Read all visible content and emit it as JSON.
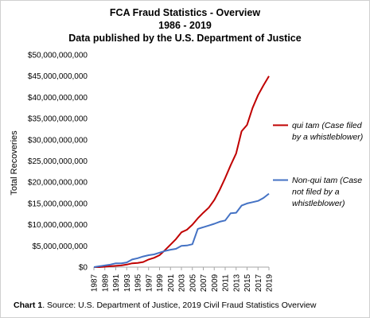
{
  "chart_data": {
    "type": "line",
    "title_lines": [
      "FCA Fraud Statistics - Overview",
      "1986 - 2019",
      "Data published by the U.S. Department of Justice"
    ],
    "ylabel": "Total Recoveries",
    "xlabel": "",
    "ylim": [
      0,
      50000000000
    ],
    "yticks": [
      0,
      5000000000,
      10000000000,
      15000000000,
      20000000000,
      25000000000,
      30000000000,
      35000000000,
      40000000000,
      45000000000,
      50000000000
    ],
    "ytick_labels": [
      "$0",
      "$5,000,000,000",
      "$10,000,000,000",
      "$15,000,000,000",
      "$20,000,000,000",
      "$25,000,000,000",
      "$30,000,000,000",
      "$35,000,000,000",
      "$40,000,000,000",
      "$45,000,000,000",
      "$50,000,000,000"
    ],
    "xlim": [
      1987,
      2019
    ],
    "xtick_labels": [
      "1987",
      "1989",
      "1991",
      "1993",
      "1995",
      "1997",
      "1999",
      "2001",
      "2003",
      "2005",
      "2007",
      "2009",
      "2011",
      "2013",
      "2015",
      "2017",
      "2019"
    ],
    "grid": false,
    "legend_position": "right",
    "x": [
      1987,
      1988,
      1989,
      1990,
      1991,
      1992,
      1993,
      1994,
      1995,
      1996,
      1997,
      1998,
      1999,
      2000,
      2001,
      2002,
      2003,
      2004,
      2005,
      2006,
      2007,
      2008,
      2009,
      2010,
      2011,
      2012,
      2013,
      2014,
      2015,
      2016,
      2017,
      2018,
      2019
    ],
    "series": [
      {
        "name_lines": [
          "qui tam (Case filed",
          "by a whistleblower)"
        ],
        "color": "#c00000",
        "values": [
          0,
          0,
          0.1,
          0.2,
          0.3,
          0.4,
          0.6,
          0.9,
          1.0,
          1.2,
          1.8,
          2.2,
          2.8,
          4.0,
          5.3,
          6.6,
          8.2,
          8.8,
          10.0,
          11.5,
          12.8,
          14.0,
          15.8,
          18.2,
          21.0,
          24.0,
          26.8,
          32.0,
          33.5,
          37.5,
          40.5,
          42.8,
          45.0
        ]
      },
      {
        "name_lines": [
          "Non-qui tam (Case",
          "not filed by a",
          "whistleblower)"
        ],
        "color": "#4472c4",
        "values": [
          0,
          0.2,
          0.4,
          0.6,
          0.9,
          0.9,
          1.1,
          1.8,
          2.1,
          2.5,
          2.8,
          3.0,
          3.4,
          3.8,
          4.1,
          4.3,
          5.0,
          5.1,
          5.4,
          9.0,
          9.4,
          9.8,
          10.2,
          10.7,
          11.0,
          12.7,
          12.8,
          14.5,
          15.0,
          15.3,
          15.6,
          16.3,
          17.3
        ]
      }
    ],
    "values_unit_note": "values in billions of dollars"
  },
  "caption": {
    "label": "Chart 1",
    "text": ". Source: U.S. Department of Justice, 2019 Civil Fraud Statistics Overview"
  }
}
